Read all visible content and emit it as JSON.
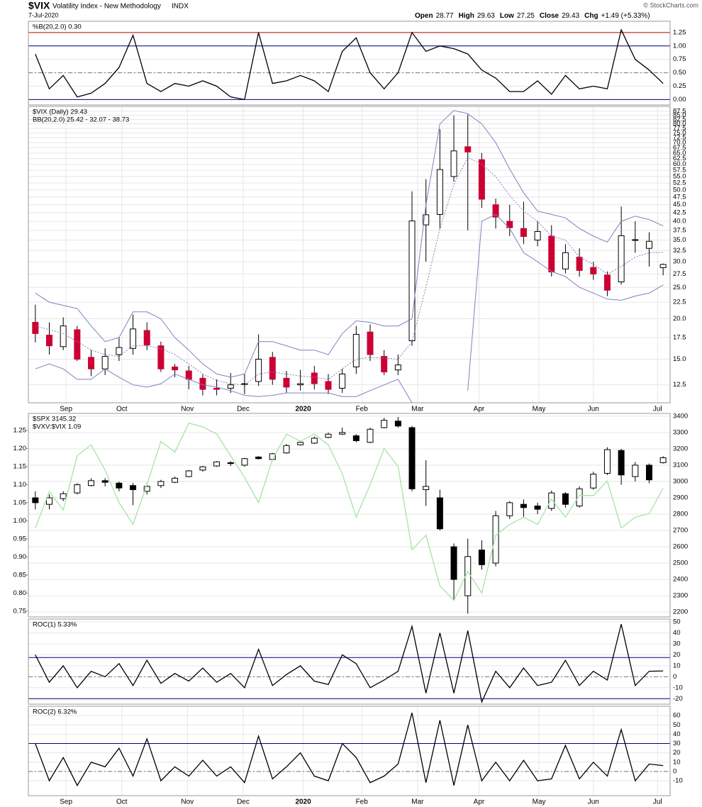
{
  "header": {
    "symbol": "$VIX",
    "name": "Volatility Index - New Methodology",
    "exchange": "INDX",
    "date": "7-Jul-2020",
    "quote": [
      {
        "label": "Open",
        "value": 28.77
      },
      {
        "label": "High",
        "value": 29.63
      },
      {
        "label": "Low",
        "value": 27.25
      },
      {
        "label": "Close",
        "value": 29.43
      },
      {
        "label": "Chg",
        "value": "+1.49 (+5.33%)"
      }
    ],
    "credit": "© StockCharts.com"
  },
  "chart_data": [
    {
      "type": "line",
      "xlim": [
        -0.5,
        45.5
      ],
      "ylim": [
        -0.1,
        1.46
      ],
      "yticks": [
        {
          "value": 0,
          "label": "0.00"
        },
        0.25,
        {
          "value": 0.5,
          "label": "0.50"
        },
        0.75,
        {
          "value": 1,
          "label": "1.00"
        },
        1.25
      ],
      "hlines": [
        {
          "value": 1.25,
          "color": "#cc0000"
        },
        {
          "value": 1,
          "color": "#000080"
        },
        {
          "value": 0.5,
          "color": "#777777",
          "dash": true
        },
        {
          "value": 0,
          "color": "#000080"
        }
      ],
      "series": [
        {
          "name": "%B(20,2.0) 0.30",
          "color": "#000000",
          "values": [
            0.85,
            0.2,
            0.45,
            0.05,
            0.12,
            0.3,
            0.6,
            1.2,
            0.3,
            0.15,
            0.3,
            0.25,
            0.35,
            0.25,
            0.05,
            0.0,
            1.25,
            0.3,
            0.35,
            0.45,
            0.35,
            0.15,
            0.9,
            1.15,
            0.5,
            0.2,
            0.5,
            1.25,
            0.9,
            1.0,
            0.95,
            0.85,
            0.55,
            0.4,
            0.15,
            0.15,
            0.35,
            0.1,
            0.45,
            0.2,
            0.25,
            0.2,
            1.3,
            0.75,
            0.55,
            0.3
          ]
        }
      ]
    },
    {
      "type": "candlestick",
      "xlim": [
        -0.5,
        45.5
      ],
      "ylim": [
        11,
        90.6
      ],
      "log_y": true,
      "yticks": [
        12.5,
        {
          "value": 15,
          "label": "15.0"
        },
        17.5,
        {
          "value": 20,
          "label": "20.0"
        },
        22.5,
        {
          "value": 25,
          "label": "25.0"
        },
        27.5,
        {
          "value": 30,
          "label": "30.0"
        },
        32.5,
        {
          "value": 35,
          "label": "35.0"
        },
        37.5,
        {
          "value": 40,
          "label": "40.0"
        },
        42.5,
        {
          "value": 45,
          "label": "45.0"
        },
        47.5,
        {
          "value": 50,
          "label": "50.0"
        },
        52.5,
        {
          "value": 55,
          "label": "55.0"
        },
        57.5,
        {
          "value": 60,
          "label": "60.0"
        },
        62.5,
        {
          "value": 65,
          "label": "65.0"
        },
        67.5,
        {
          "value": 70,
          "label": "70.0"
        },
        72.5,
        {
          "value": 75,
          "label": "75.0"
        },
        77.5,
        {
          "value": 80,
          "label": "80.0"
        },
        82.5,
        {
          "value": 85,
          "label": "85.0"
        },
        87.5
      ],
      "xticks": [
        {
          "value": 2.2,
          "label": "Sep"
        },
        {
          "value": 6.2,
          "label": "Oct"
        },
        {
          "value": 10.9,
          "label": "Nov"
        },
        {
          "value": 14.9,
          "label": "Dec"
        },
        {
          "value": 19.2,
          "label": "2020"
        },
        {
          "value": 23.4,
          "label": "Feb"
        },
        {
          "value": 27.4,
          "label": "Mar"
        },
        {
          "value": 31.8,
          "label": "Apr"
        },
        {
          "value": 36.1,
          "label": "May"
        },
        {
          "value": 40,
          "label": "Jun"
        },
        {
          "value": 44.6,
          "label": "Jul"
        }
      ],
      "series": [
        {
          "type": "candlestick",
          "name": "$VIX (Daily) 29.43",
          "color": "#000000",
          "up_color": "#ffffff",
          "down_color": "#cc0033",
          "open": [
            19.5,
            17.8,
            16.4,
            18.5,
            15.2,
            14,
            15.5,
            16.2,
            18.4,
            16.5,
            14.2,
            13.8,
            13.1,
            12.2,
            12.2,
            12.6,
            12.8,
            15.2,
            13.1,
            12.5,
            13.6,
            12.8,
            12.2,
            14.2,
            18.2,
            15.3,
            13.9,
            17.1,
            39,
            42,
            55,
            68,
            62,
            45,
            40,
            38,
            35,
            36,
            28.5,
            31,
            28.8,
            27.3,
            26,
            35,
            33,
            28.77
          ],
          "high": [
            22.1,
            19.5,
            20.2,
            19,
            16,
            16.2,
            17.5,
            20.6,
            19.5,
            17,
            14.5,
            14.3,
            13.5,
            13,
            13.6,
            13.5,
            17.9,
            15.8,
            13.8,
            13.9,
            14.3,
            13.5,
            14,
            19,
            19.2,
            16,
            15.5,
            49.5,
            54,
            77,
            85,
            85.5,
            65,
            47,
            45,
            46,
            40,
            38.9,
            34,
            33,
            30,
            28,
            44.4,
            40,
            37,
            29.63
          ],
          "low": [
            16.9,
            15.5,
            16,
            14.8,
            13.3,
            13.4,
            14.8,
            15.5,
            16,
            13.7,
            13.2,
            12.1,
            11.6,
            11.6,
            11.8,
            11.7,
            12.4,
            12.5,
            11.8,
            12,
            12.1,
            11.7,
            11.8,
            13.5,
            14.8,
            13.4,
            13.4,
            16.5,
            30,
            38,
            53,
            37.5,
            44,
            38,
            36,
            34,
            33.5,
            27,
            27.6,
            27,
            26.4,
            23.5,
            25.5,
            32,
            29,
            27.25
          ],
          "close": [
            18,
            16.5,
            19,
            15,
            14,
            15.3,
            16.3,
            18.6,
            16.6,
            14,
            13.9,
            13,
            12.1,
            12.1,
            12.5,
            12.6,
            15,
            13,
            12.3,
            12.6,
            12.6,
            12.1,
            13.5,
            17.9,
            15.5,
            13.7,
            14.4,
            40.1,
            41.9,
            57.8,
            66,
            65.5,
            46.8,
            41.2,
            38.2,
            35.9,
            37.2,
            27.9,
            32,
            28.2,
            27.5,
            24.5,
            36.1,
            35.1,
            34.7,
            29.43
          ]
        },
        {
          "type": "band",
          "name": "BB(20,2.0) 25.42 - 32.07 - 38.73",
          "color": "#000080",
          "line_color": "#8080c0",
          "upper": [
            24,
            22.5,
            22,
            21.5,
            19,
            17,
            17.5,
            21,
            21,
            20,
            17.5,
            16,
            14.5,
            13.5,
            13.2,
            13.5,
            17,
            17,
            16.5,
            16,
            16,
            15.5,
            18,
            19.7,
            19.5,
            19,
            19,
            20,
            45,
            80,
            88,
            86,
            80,
            70,
            58,
            49,
            43,
            42,
            41,
            38,
            36,
            34.5,
            40,
            41.5,
            40.5,
            38.73
          ],
          "middle": [
            19,
            18.5,
            18,
            17,
            16,
            15.5,
            15.3,
            16.5,
            16.5,
            16.2,
            15.5,
            14.5,
            13.5,
            12.9,
            12.6,
            12.5,
            13.5,
            13.7,
            13.5,
            13.3,
            13.2,
            13,
            14,
            15,
            15.2,
            15.1,
            15,
            17,
            25,
            38,
            52,
            63,
            60,
            55,
            48,
            43,
            40,
            36,
            35,
            31,
            29.5,
            27.5,
            29,
            31,
            32,
            32.07
          ],
          "lower": [
            14,
            14.5,
            14,
            13,
            13,
            14,
            13.2,
            12.5,
            12.3,
            12.6,
            13.5,
            13,
            12.5,
            12.3,
            12,
            11.6,
            11.5,
            11.6,
            11.8,
            11.8,
            11.8,
            11.8,
            11.5,
            11.5,
            12,
            12.5,
            13,
            11,
            null,
            null,
            null,
            12,
            40,
            42,
            38,
            32,
            30,
            28,
            27,
            25,
            24,
            23,
            22.8,
            23.5,
            24,
            25.42
          ]
        }
      ]
    },
    {
      "type": "candlestick",
      "xlim": [
        -0.5,
        45.5
      ],
      "ylim": [
        2170,
        3417
      ],
      "y2lim": [
        0.734,
        1.297
      ],
      "yticks": [
        2200,
        2300,
        2400,
        2500,
        2600,
        2700,
        2800,
        2900,
        3000,
        3100,
        3200,
        3300,
        3400
      ],
      "y2ticks": [
        0.75,
        {
          "value": 0.8,
          "label": "0.80"
        },
        0.85,
        {
          "value": 0.9,
          "label": "0.90"
        },
        0.95,
        {
          "value": 1,
          "label": "1.00"
        },
        1.05,
        {
          "value": 1.1,
          "label": "1.10"
        },
        1.15,
        {
          "value": 1.2,
          "label": "1.20"
        },
        1.25
      ],
      "series": [
        {
          "type": "candlestick",
          "name": "$SPX 3145.32",
          "color": "#000000",
          "up_color": "#ffffff",
          "down_color": "#000000",
          "open": [
            2900,
            2860,
            2895,
            2930,
            2975,
            3005,
            2990,
            2975,
            2940,
            2975,
            2995,
            3030,
            3070,
            3095,
            3115,
            3100,
            3150,
            3135,
            3175,
            3225,
            3235,
            3270,
            3290,
            3280,
            3240,
            3330,
            3370,
            3330,
            2950,
            2900,
            2600,
            2300,
            2580,
            2500,
            2790,
            2860,
            2850,
            2835,
            2925,
            2850,
            2960,
            3050,
            3190,
            3030,
            3100,
            3115
          ],
          "high": [
            2940,
            2920,
            2940,
            2990,
            3020,
            3020,
            3000,
            2990,
            2990,
            3010,
            3030,
            3070,
            3095,
            3125,
            3125,
            3145,
            3155,
            3175,
            3230,
            3245,
            3275,
            3300,
            3330,
            3290,
            3330,
            3390,
            3395,
            3340,
            3130,
            2950,
            2620,
            2650,
            2640,
            2820,
            2880,
            2890,
            2870,
            2945,
            2935,
            2970,
            3060,
            3210,
            3200,
            3120,
            3110,
            3155
          ],
          "low": [
            2830,
            2830,
            2880,
            2920,
            2970,
            2970,
            2940,
            2855,
            2920,
            2960,
            2990,
            3025,
            3060,
            3090,
            3095,
            3090,
            3135,
            3130,
            3170,
            3220,
            3230,
            3265,
            3285,
            3240,
            3235,
            3325,
            3330,
            2940,
            2850,
            2700,
            2270,
            2190,
            2460,
            2480,
            2770,
            2780,
            2800,
            2820,
            2840,
            2840,
            2950,
            3040,
            2980,
            3000,
            2990,
            3110
          ],
          "close": [
            2870,
            2900,
            2925,
            2980,
            3005,
            2995,
            2960,
            2950,
            2970,
            3000,
            3020,
            3065,
            3090,
            3120,
            3110,
            3140,
            3140,
            3170,
            3220,
            3240,
            3265,
            3290,
            3300,
            3250,
            3320,
            3375,
            3340,
            2955,
            2970,
            2710,
            2400,
            2540,
            2490,
            2790,
            2870,
            2840,
            2830,
            2930,
            2860,
            2955,
            3045,
            3195,
            3040,
            3100,
            3010,
            3145.32
          ]
        },
        {
          "type": "line",
          "name": "$VXV:$VIX 1.09",
          "color": "#a6e3a6",
          "legend_color": "#22bb22",
          "axis": "y2",
          "values": [
            0.98,
            1.08,
            1.03,
            1.18,
            1.21,
            1.14,
            1.05,
            0.99,
            1.1,
            1.22,
            1.19,
            1.27,
            1.26,
            1.24,
            1.18,
            1.12,
            1.05,
            1.17,
            1.24,
            1.22,
            1.24,
            1.21,
            1.13,
            1.01,
            1.1,
            1.2,
            1.15,
            0.92,
            0.96,
            0.82,
            0.78,
            0.86,
            0.8,
            0.96,
            0.99,
            1.01,
            0.99,
            1.06,
            1.01,
            1.07,
            1.07,
            1.11,
            0.98,
            1.01,
            1.02,
            1.09
          ]
        }
      ]
    },
    {
      "type": "line",
      "xlim": [
        -0.5,
        45.5
      ],
      "ylim": [
        -25,
        52.6
      ],
      "yticks": [
        -20,
        -10,
        0,
        10,
        20,
        30,
        40,
        50
      ],
      "hlines": [
        {
          "value": 17.5,
          "color": "#000080"
        },
        {
          "value": -20,
          "color": "#000080"
        },
        {
          "value": 0,
          "color": "#777777",
          "dash": true
        }
      ],
      "series": [
        {
          "name": "ROC(1) 5.33%",
          "color": "#000000",
          "values": [
            20,
            -5,
            10,
            -10,
            5,
            0,
            12,
            -8,
            15,
            -6,
            3,
            -4,
            8,
            -5,
            3,
            -10,
            25,
            -8,
            2,
            10,
            -4,
            -7,
            20,
            12,
            -10,
            -3,
            5,
            46,
            -15,
            40,
            -15,
            42,
            -23,
            5,
            -10,
            8,
            -8,
            -5,
            15,
            -8,
            5,
            -3,
            48,
            -8,
            5,
            5.33
          ]
        }
      ]
    },
    {
      "type": "line",
      "xlim": [
        -0.5,
        45.5
      ],
      "ylim": [
        -26,
        70
      ],
      "yticks": [
        -10,
        0,
        10,
        20,
        30,
        40,
        50,
        60
      ],
      "xticks": [
        {
          "value": 2.2,
          "label": "Sep"
        },
        {
          "value": 6.2,
          "label": "Oct"
        },
        {
          "value": 10.9,
          "label": "Nov"
        },
        {
          "value": 14.9,
          "label": "Dec"
        },
        {
          "value": 19.2,
          "label": "2020"
        },
        {
          "value": 23.4,
          "label": "Feb"
        },
        {
          "value": 27.4,
          "label": "Mar"
        },
        {
          "value": 31.8,
          "label": "Apr"
        },
        {
          "value": 36.1,
          "label": "May"
        },
        {
          "value": 40,
          "label": "Jun"
        },
        {
          "value": 44.6,
          "label": "Jul"
        }
      ],
      "hlines": [
        {
          "value": 30,
          "color": "#000080"
        },
        {
          "value": 0,
          "color": "#777777",
          "dash": true
        }
      ],
      "series": [
        {
          "name": "ROC(2) 6.32%",
          "color": "#000000",
          "values": [
            30,
            -10,
            15,
            -15,
            10,
            5,
            25,
            -5,
            35,
            -10,
            5,
            -5,
            12,
            -5,
            5,
            -12,
            38,
            -8,
            5,
            20,
            -5,
            -10,
            30,
            15,
            -12,
            -5,
            8,
            63,
            -12,
            55,
            -15,
            50,
            -10,
            10,
            -10,
            12,
            -10,
            -8,
            28,
            -8,
            10,
            -5,
            45,
            -10,
            8,
            6.32
          ]
        }
      ]
    }
  ]
}
